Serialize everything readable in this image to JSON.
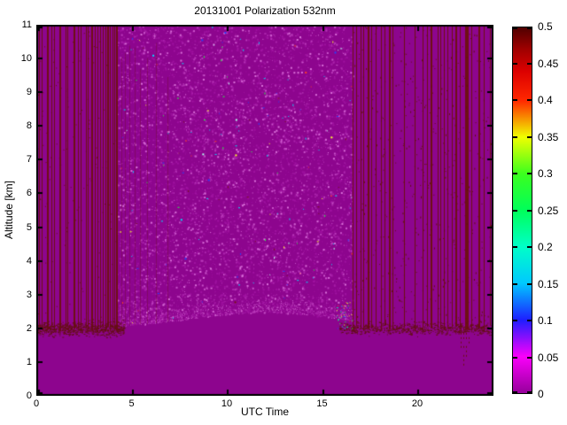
{
  "figure": {
    "title": "20131001 Polarization 532nm",
    "xlabel": "UTC Time",
    "ylabel": "Altitude [km]"
  },
  "chart_data": {
    "type": "heatmap",
    "title": "20131001 Polarization 532nm",
    "xlabel": "UTC Time",
    "ylabel": "Altitude [km]",
    "xlim": [
      0,
      24
    ],
    "ylim": [
      0,
      11
    ],
    "xticks": [
      0,
      5,
      10,
      15,
      20
    ],
    "xtick_labels": [
      "0",
      "5",
      "10",
      "15",
      "20"
    ],
    "yticks": [
      0,
      1,
      2,
      3,
      4,
      5,
      6,
      7,
      8,
      9,
      10,
      11
    ],
    "ytick_labels": [
      "0",
      "1",
      "2",
      "3",
      "4",
      "5",
      "6",
      "7",
      "8",
      "9",
      "10",
      "11"
    ],
    "grid": false,
    "colorbar": {
      "min": 0,
      "max": 0.5,
      "ticks": [
        0,
        0.05,
        0.1,
        0.15,
        0.2,
        0.25,
        0.3,
        0.35,
        0.4,
        0.45,
        0.5
      ],
      "tick_labels": [
        "0",
        "0.05",
        "0.1",
        "0.15",
        "0.2",
        "0.25",
        "0.3",
        "0.35",
        "0.4",
        "0.45",
        "0.5"
      ],
      "gradient_stops": [
        {
          "value": 0.0,
          "color": "#96009B"
        },
        {
          "value": 0.05,
          "color": "#FA00FA"
        },
        {
          "value": 0.1,
          "color": "#1E1EFF"
        },
        {
          "value": 0.15,
          "color": "#00C8FF"
        },
        {
          "value": 0.2,
          "color": "#00FFC8"
        },
        {
          "value": 0.25,
          "color": "#00FF5A"
        },
        {
          "value": 0.3,
          "color": "#3CFF1E"
        },
        {
          "value": 0.35,
          "color": "#F0FF00"
        },
        {
          "value": 0.4,
          "color": "#FF2800"
        },
        {
          "value": 0.44,
          "color": "#DC0000"
        },
        {
          "value": 0.47,
          "color": "#A00000"
        },
        {
          "value": 0.5,
          "color": "#500000"
        }
      ]
    },
    "field": {
      "seed": 20131001,
      "background_color": "#8D058E",
      "stripe_color": "#6E1014",
      "dark_speckle_color": "#641014",
      "light_speckle_colors": [
        "#9F12A0",
        "#AB24AC",
        "#BA3ABB",
        "#C953CA",
        "#DA70DA"
      ],
      "bright_speckle_colors": [
        "#00E1FF",
        "#2841FF",
        "#28FF46",
        "#FFFF28",
        "#FF3C28",
        "#781414",
        "#B4FFF0"
      ],
      "surface_altitude_km": 2.0,
      "noise_window_utc": [
        4.25,
        16.6
      ],
      "noise_boundary": {
        "base_km": 2.02,
        "bump_km": 0.45,
        "bump_center_utc": 12.0,
        "bump_width_utc": 5.2
      },
      "left_stripes_utc": [
        0.14,
        0.28,
        0.56,
        0.79,
        0.93,
        1.21,
        1.53,
        1.63,
        1.95,
        2.19,
        2.33,
        2.6,
        2.7,
        2.88,
        3.07,
        3.21,
        3.35,
        3.49,
        3.63,
        3.72,
        3.86,
        4.0,
        4.09,
        4.19
      ],
      "left_stripe_widths": [
        1,
        1,
        2,
        1,
        1,
        2,
        1,
        1,
        2,
        1,
        1,
        1,
        1,
        2,
        1,
        1,
        1,
        1,
        1,
        2,
        1,
        1,
        1,
        2
      ],
      "right_stripes_utc": [
        16.6,
        16.8,
        17.0,
        17.15,
        17.4,
        17.6,
        17.8,
        18.1,
        18.3,
        18.5,
        18.7,
        19.3,
        19.85,
        20.3,
        20.5,
        20.7,
        21.05,
        21.2,
        21.4,
        21.6,
        21.8,
        22.0,
        22.25,
        22.5,
        22.85,
        23.2,
        23.5,
        23.8
      ],
      "right_stripe_widths": [
        1,
        1,
        1,
        1,
        2,
        1,
        1,
        1,
        1,
        2,
        1,
        1,
        1,
        1,
        1,
        2,
        1,
        1,
        1,
        1,
        1,
        2,
        1,
        4,
        1,
        2,
        1,
        1
      ],
      "faint_noise_columns_utc": [
        4.45,
        4.65,
        4.9,
        5.15,
        5.45,
        5.8,
        6.3,
        6.9
      ],
      "sub_surface_dash_columns": {
        "utc": [
          22.3,
          22.42,
          22.55,
          22.7
        ],
        "alt_top_km": 2.0,
        "alt_bottoms_km": [
          1.4,
          0.85,
          1.1,
          1.6
        ]
      },
      "transition_bright_cluster": {
        "utc_range": [
          15.75,
          16.65
        ],
        "alt_range_km": [
          2.0,
          2.8
        ]
      }
    }
  }
}
